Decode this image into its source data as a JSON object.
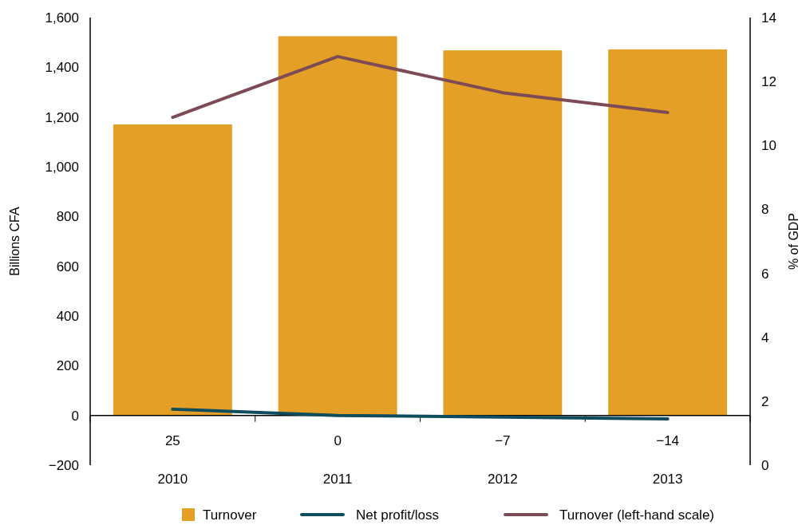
{
  "chart_data": {
    "type": "bar",
    "categories": [
      "2010",
      "2011",
      "2012",
      "2013"
    ],
    "ylabel": "Billions CFA",
    "y2label": "% of GDP",
    "ylim": [
      -200,
      1600
    ],
    "yticks": [
      {
        "value": -200,
        "label": "−200"
      },
      0,
      200,
      400,
      600,
      800,
      {
        "value": 1000,
        "label": "1,000"
      },
      {
        "value": 1200,
        "label": "1,200"
      },
      {
        "value": 1400,
        "label": "1,400"
      },
      {
        "value": 1600,
        "label": "1,600"
      }
    ],
    "y2lim": [
      0,
      14
    ],
    "y2ticks": [
      0,
      2,
      4,
      6,
      8,
      10,
      12,
      14
    ],
    "series": [
      {
        "name": "Turnover",
        "color": "#e39f26",
        "values": [
          1170,
          1525,
          1468,
          1472
        ]
      },
      {
        "name": "Net profit/loss",
        "type": "line",
        "color": "#0f4c5c",
        "values": [
          25,
          0,
          -7,
          -14
        ],
        "value_labels": [
          "25",
          "0",
          "−7",
          "−14"
        ]
      },
      {
        "name": "Turnover (left-hand scale)",
        "type": "line",
        "axis": "y2",
        "color": "#7d4b55",
        "values": [
          10.88,
          12.78,
          11.65,
          11.03
        ]
      }
    ],
    "legend": "bottom"
  }
}
